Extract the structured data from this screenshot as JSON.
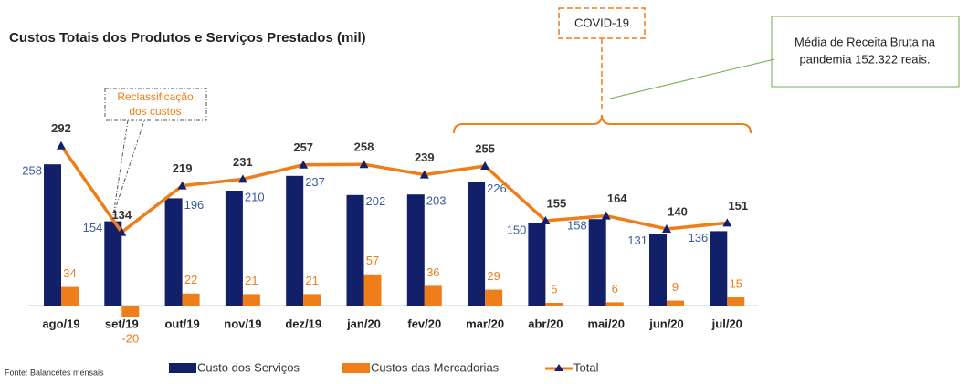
{
  "chart_data": {
    "type": "bar-line",
    "title": "Custos Totais dos Produtos e Serviços Prestados (mil)",
    "categories": [
      "ago/19",
      "set/19",
      "out/19",
      "nov/19",
      "dez/19",
      "jan/20",
      "fev/20",
      "mar/20",
      "abr/20",
      "mai/20",
      "jun/20",
      "jul/20"
    ],
    "series": [
      {
        "name": "Custo dos Serviços",
        "color": "#12206a",
        "kind": "bar",
        "values": [
          258,
          154,
          196,
          210,
          237,
          202,
          203,
          226,
          150,
          158,
          131,
          136
        ]
      },
      {
        "name": "Custos das Mercadorias",
        "color": "#ee7d1a",
        "kind": "bar",
        "values": [
          34,
          -20,
          22,
          21,
          21,
          57,
          36,
          29,
          5,
          6,
          9,
          15
        ]
      },
      {
        "name": "Total",
        "color": "#ee7d1a",
        "marker_color": "#12206a",
        "kind": "line",
        "values": [
          292,
          134,
          219,
          231,
          257,
          258,
          239,
          255,
          155,
          164,
          140,
          151
        ]
      }
    ],
    "annotations": {
      "reclass": [
        "Reclassificação",
        "dos custos"
      ],
      "covid": "COVID-19",
      "receita": [
        "Média de Receita Bruta na",
        "pandemia 152.322 reais."
      ]
    },
    "source": "Fonte: Balancetes mensais"
  }
}
